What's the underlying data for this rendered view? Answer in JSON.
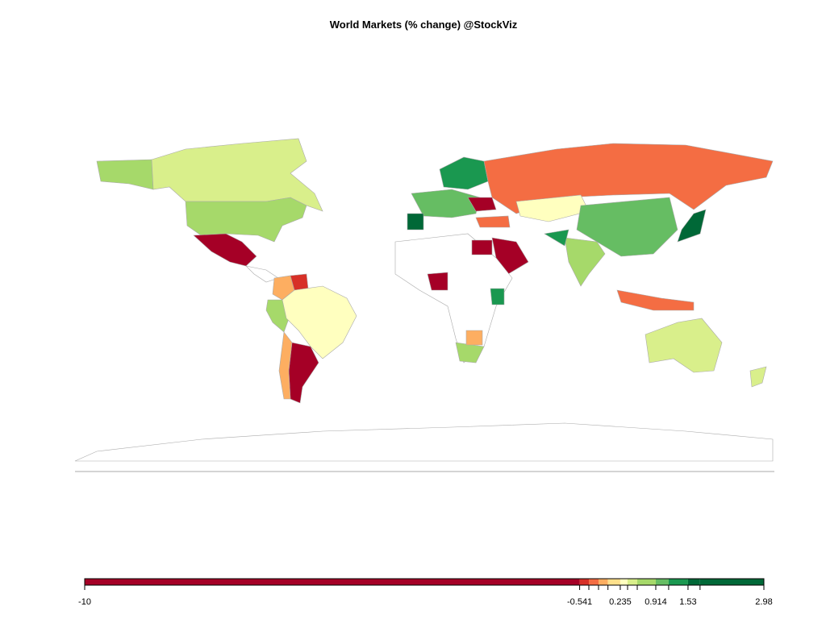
{
  "title": "World Markets (% change) @StockViz",
  "legend": {
    "range": [
      -10,
      2.98
    ],
    "breaks": [
      -10,
      -0.541,
      -0.365,
      -0.18,
      0.0,
      0.235,
      0.375,
      0.56,
      0.914,
      1.16,
      1.53,
      1.76,
      2.98
    ],
    "colors": [
      "#a50026",
      "#d73027",
      "#f46d43",
      "#fdae61",
      "#fee08b",
      "#ffffbf",
      "#d9ef8b",
      "#a6d96a",
      "#66bd63",
      "#1a9850",
      "#006837",
      "#006837"
    ],
    "ticks": [
      -10,
      -0.541,
      0.235,
      0.914,
      1.53,
      2.98
    ]
  }
}
